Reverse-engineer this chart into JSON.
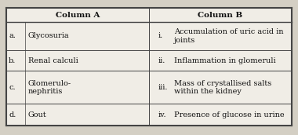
{
  "title_a": "Column A",
  "title_b": "Column B",
  "col_a_letters": [
    "a.",
    "b.",
    "c.",
    "d."
  ],
  "col_a_terms": [
    "Glycosuria",
    "Renal calculi",
    "Glomerulo-\nnephritis",
    "Gout"
  ],
  "col_num": [
    "i.",
    "ii.",
    "iii.",
    "iv."
  ],
  "col_b": [
    "Accumulation of uric acid in\njoints",
    "Inflammation in glomeruli",
    "Mass of crystallised salts\nwithin the kidney",
    "Presence of glucose in urine"
  ],
  "bg_color": "#d4cfc4",
  "table_bg": "#f0ede6",
  "border_color": "#444444",
  "text_color": "#111111",
  "header_fontsize": 7.5,
  "body_fontsize": 7.0,
  "fig_width": 3.8,
  "fig_height": 1.72,
  "dpi": 100
}
